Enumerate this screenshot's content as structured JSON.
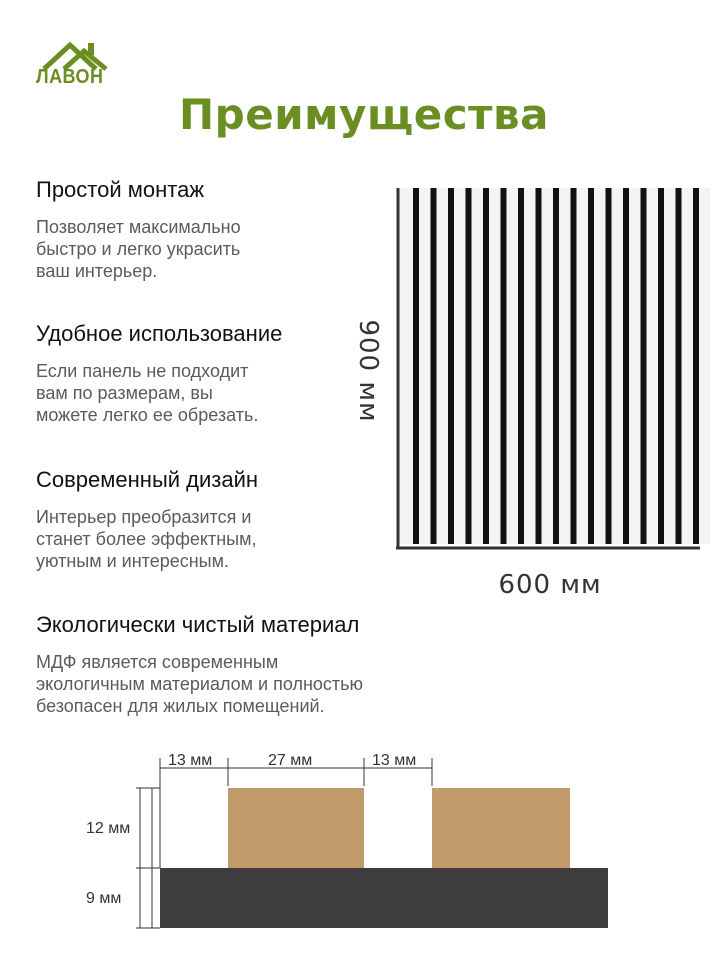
{
  "logo": {
    "text": "ЛАВОН",
    "color": "#6b8e23"
  },
  "title": "Преимущества",
  "features": [
    {
      "title": "Простой монтаж",
      "description": "Позволяет максимально\nбыстро и легко украсить\nваш интерьер."
    },
    {
      "title": "Удобное использование",
      "description": "Если панель не подходит\nвам по размерам, вы\nможете легко ее обрезать."
    },
    {
      "title": "Современный дизайн",
      "description": "Интерьер преобразится и\nстанет более эффектным,\nуютным и интересным."
    },
    {
      "title": "Экологически чистый материал",
      "description": "МДФ является современным\nэкологичным материалом и полностью\nбезопасен для жилых помещений."
    }
  ],
  "panel": {
    "height_label": "900 мм",
    "width_label": "600 мм",
    "slat_count": 17,
    "slat_color": "#111111",
    "background_color": "#f3f3f3"
  },
  "cross_section": {
    "top_dimensions": [
      "13 мм",
      "27 мм",
      "13 мм"
    ],
    "left_dimensions": [
      "12 мм",
      "9 мм"
    ],
    "slat_color": "#c19a6b",
    "base_color": "#3e3c3f"
  }
}
